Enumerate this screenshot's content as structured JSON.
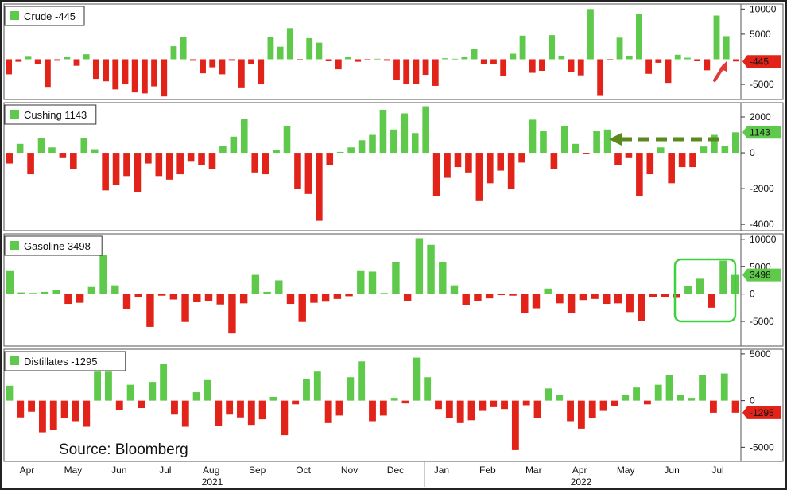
{
  "colors": {
    "positive": "#5ec94a",
    "negative": "#e2231a",
    "panel_border": "#222222",
    "arrow_green": "#5a8a1e",
    "arrow_red": "#e23a3a",
    "highlight_box": "#3dd13d"
  },
  "source": "Source: Bloomberg",
  "x_axis": {
    "months": [
      "Apr",
      "May",
      "Jun",
      "Jul",
      "Aug",
      "Sep",
      "Oct",
      "Nov",
      "Dec",
      "Jan",
      "Feb",
      "Mar",
      "Apr",
      "May",
      "Jun",
      "Jul"
    ],
    "years": [
      "2021",
      "2022"
    ]
  },
  "chart_data": [
    {
      "type": "bar",
      "legend": "Crude -445",
      "last_value_label": "-445",
      "ylim": [
        -8000,
        11000
      ],
      "y_ticks": [
        10000,
        5000,
        -5000
      ],
      "y_tick_labels": [
        "10000",
        "5000",
        "-5000"
      ],
      "values": [
        -3000,
        -500,
        500,
        -1000,
        -5500,
        -300,
        400,
        -1300,
        1000,
        -3900,
        -4400,
        -6000,
        -5000,
        -6600,
        -6800,
        -5400,
        -7400,
        2600,
        4400,
        -300,
        -2800,
        -1600,
        -3000,
        -300,
        -5600,
        -1000,
        -5000,
        4400,
        2500,
        6200,
        -200,
        4200,
        3300,
        -400,
        -2000,
        400,
        -500,
        -200,
        100,
        -300,
        -4200,
        -5000,
        -4900,
        -3100,
        -5300,
        200,
        100,
        400,
        2100,
        -900,
        -1000,
        -3400,
        1100,
        4700,
        -2700,
        -2300,
        4800,
        700,
        -2600,
        -3200,
        10000,
        -7300,
        -200,
        4300,
        700,
        9100,
        -2900,
        -700,
        -4700,
        900,
        300,
        -400,
        -2200,
        8700,
        4600,
        -445
      ]
    },
    {
      "type": "bar",
      "legend": "Cushing 1143",
      "last_value_label": "1143",
      "ylim": [
        -4350,
        2800
      ],
      "y_ticks": [
        2000,
        0,
        -2000,
        -4000
      ],
      "y_tick_labels": [
        "2000",
        "0",
        "-2000",
        "-4000"
      ],
      "values": [
        -600,
        500,
        -1200,
        800,
        300,
        -300,
        -900,
        800,
        200,
        -2100,
        -1800,
        -1300,
        -2200,
        -600,
        -1300,
        -1500,
        -1200,
        -500,
        -700,
        -900,
        400,
        900,
        1900,
        -1100,
        -1200,
        150,
        1500,
        -2000,
        -2300,
        -3800,
        -700,
        50,
        300,
        700,
        1000,
        2400,
        1300,
        2200,
        1100,
        2600,
        -2400,
        -1400,
        -800,
        -1100,
        -2700,
        -1700,
        -1000,
        -2000,
        -550,
        1850,
        1200,
        -900,
        1500,
        500,
        -50,
        1200,
        1300,
        -700,
        -300,
        -2400,
        -1200,
        300,
        -1700,
        -800,
        -800,
        350,
        1000,
        400,
        1143
      ]
    },
    {
      "type": "bar",
      "legend": "Gasoline 3498",
      "last_value_label": "3498",
      "ylim": [
        -9500,
        11000
      ],
      "y_ticks": [
        10000,
        5000,
        0,
        -5000
      ],
      "y_tick_labels": [
        "10000",
        "5000",
        "0",
        "-5000"
      ],
      "values": [
        4200,
        300,
        200,
        400,
        700,
        -1800,
        -1600,
        1300,
        7200,
        1600,
        -2800,
        -600,
        -6000,
        -300,
        -1000,
        -5100,
        -1500,
        -1300,
        -1900,
        -7200,
        -1700,
        3500,
        400,
        2500,
        -1800,
        -5100,
        -1600,
        -1400,
        -900,
        -400,
        4200,
        4100,
        200,
        5800,
        -1300,
        10200,
        9000,
        5800,
        1600,
        -2000,
        -1300,
        -800,
        -200,
        -300,
        -3400,
        -2600,
        1000,
        -1700,
        -3500,
        -1100,
        -900,
        -1800,
        -1700,
        -3300,
        -4900,
        -600,
        -600,
        -700,
        1500,
        2800,
        -2500,
        6100,
        3498
      ]
    },
    {
      "type": "bar",
      "legend": "Distillates -1295",
      "last_value_label": "-1295",
      "ylim": [
        -6500,
        5500
      ],
      "y_ticks": [
        5000,
        0,
        -5000
      ],
      "y_tick_labels": [
        "5000",
        "0",
        "-5000"
      ],
      "values": [
        1600,
        -1800,
        -1200,
        -3400,
        -3100,
        -1900,
        -2200,
        -2800,
        3100,
        3100,
        -1000,
        1700,
        -800,
        2000,
        3900,
        -1500,
        -2800,
        900,
        2200,
        -2700,
        -1500,
        -1800,
        -2600,
        -2000,
        400,
        -3700,
        -400,
        2300,
        3100,
        -2400,
        -1600,
        2500,
        4200,
        -2200,
        -1600,
        300,
        -300,
        4600,
        2500,
        -900,
        -1900,
        -2400,
        -2100,
        -1100,
        -700,
        -900,
        -5300,
        -500,
        -1900,
        1300,
        600,
        -2200,
        -3000,
        -1900,
        -1100,
        -600,
        600,
        1400,
        -400,
        1700,
        2700,
        600,
        300,
        2700,
        -1300,
        2900,
        -1295
      ]
    }
  ]
}
